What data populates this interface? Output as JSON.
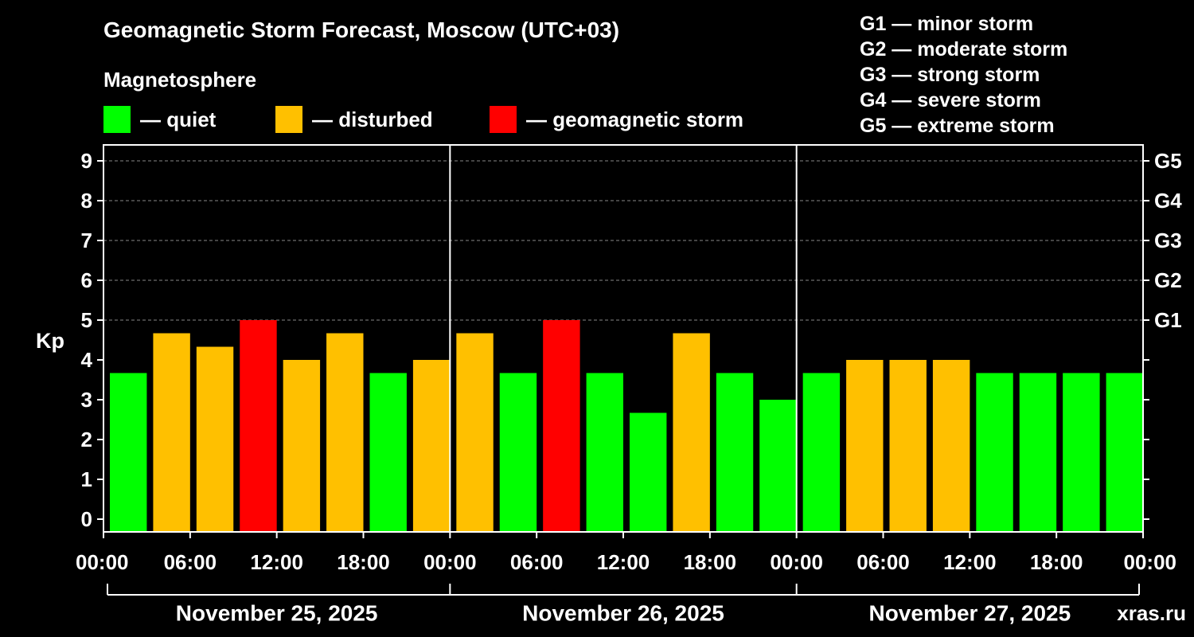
{
  "header": {
    "title": "Geomagnetic Storm Forecast, Moscow (UTC+03)",
    "subtitle": "Magnetosphere"
  },
  "legend": {
    "items": [
      {
        "label": "— quiet",
        "color": "#00ff00"
      },
      {
        "label": "— disturbed",
        "color": "#ffc000"
      },
      {
        "label": "— geomagnetic storm",
        "color": "#ff0000"
      }
    ]
  },
  "g_legend": [
    "G1 — minor storm",
    "G2 — moderate storm",
    "G3 — strong storm",
    "G4 — severe storm",
    "G5 — extreme storm"
  ],
  "watermark": "xras.ru",
  "chart_data": {
    "type": "bar",
    "ylabel": "Kp",
    "ylim": [
      0,
      9
    ],
    "yticks": [
      0,
      1,
      2,
      3,
      4,
      5,
      6,
      7,
      8,
      9
    ],
    "right_axis_labels": [
      {
        "kp": 5,
        "label": "G1"
      },
      {
        "kp": 6,
        "label": "G2"
      },
      {
        "kp": 7,
        "label": "G3"
      },
      {
        "kp": 8,
        "label": "G4"
      },
      {
        "kp": 9,
        "label": "G5"
      }
    ],
    "grid": true,
    "x_tick_labels": [
      "00:00",
      "06:00",
      "12:00",
      "18:00",
      "00:00",
      "06:00",
      "12:00",
      "18:00",
      "00:00",
      "06:00",
      "12:00",
      "18:00",
      "00:00"
    ],
    "days": [
      "November 25, 2025",
      "November 26, 2025",
      "November 27, 2025"
    ],
    "colors": {
      "quiet": "#00ff00",
      "disturbed": "#ffc000",
      "storm": "#ff0000"
    },
    "values": [
      3.67,
      4.67,
      4.33,
      5.0,
      4.0,
      4.67,
      3.67,
      4.0,
      4.67,
      3.67,
      5.0,
      3.67,
      2.67,
      4.67,
      3.67,
      3.0,
      3.67,
      4.0,
      4.0,
      4.0,
      3.67,
      3.67,
      3.67,
      3.67
    ]
  }
}
